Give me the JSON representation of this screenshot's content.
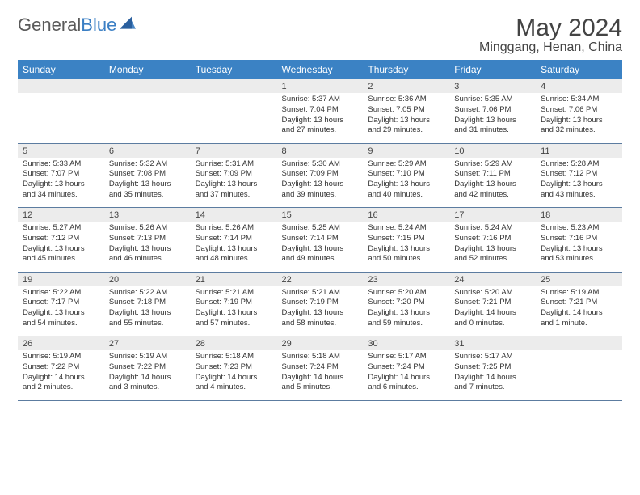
{
  "logo": {
    "word1": "General",
    "word2": "Blue"
  },
  "title": "May 2024",
  "location": "Minggang, Henan, China",
  "colors": {
    "header_bg": "#3b82c4",
    "header_text": "#ffffff",
    "daynum_bg": "#ececec",
    "border": "#5c7ca0",
    "text": "#333333",
    "title_text": "#444444",
    "logo_gray": "#5a5a5a",
    "logo_blue": "#3b7fc4"
  },
  "fonts": {
    "title_pt": 30,
    "location_pt": 16,
    "dayhead_pt": 12,
    "daynum_pt": 11,
    "cell_pt": 9.5
  },
  "day_names": [
    "Sunday",
    "Monday",
    "Tuesday",
    "Wednesday",
    "Thursday",
    "Friday",
    "Saturday"
  ],
  "weeks": [
    [
      {
        "num": "",
        "lines": []
      },
      {
        "num": "",
        "lines": []
      },
      {
        "num": "",
        "lines": []
      },
      {
        "num": "1",
        "lines": [
          "Sunrise: 5:37 AM",
          "Sunset: 7:04 PM",
          "Daylight: 13 hours",
          "and 27 minutes."
        ]
      },
      {
        "num": "2",
        "lines": [
          "Sunrise: 5:36 AM",
          "Sunset: 7:05 PM",
          "Daylight: 13 hours",
          "and 29 minutes."
        ]
      },
      {
        "num": "3",
        "lines": [
          "Sunrise: 5:35 AM",
          "Sunset: 7:06 PM",
          "Daylight: 13 hours",
          "and 31 minutes."
        ]
      },
      {
        "num": "4",
        "lines": [
          "Sunrise: 5:34 AM",
          "Sunset: 7:06 PM",
          "Daylight: 13 hours",
          "and 32 minutes."
        ]
      }
    ],
    [
      {
        "num": "5",
        "lines": [
          "Sunrise: 5:33 AM",
          "Sunset: 7:07 PM",
          "Daylight: 13 hours",
          "and 34 minutes."
        ]
      },
      {
        "num": "6",
        "lines": [
          "Sunrise: 5:32 AM",
          "Sunset: 7:08 PM",
          "Daylight: 13 hours",
          "and 35 minutes."
        ]
      },
      {
        "num": "7",
        "lines": [
          "Sunrise: 5:31 AM",
          "Sunset: 7:09 PM",
          "Daylight: 13 hours",
          "and 37 minutes."
        ]
      },
      {
        "num": "8",
        "lines": [
          "Sunrise: 5:30 AM",
          "Sunset: 7:09 PM",
          "Daylight: 13 hours",
          "and 39 minutes."
        ]
      },
      {
        "num": "9",
        "lines": [
          "Sunrise: 5:29 AM",
          "Sunset: 7:10 PM",
          "Daylight: 13 hours",
          "and 40 minutes."
        ]
      },
      {
        "num": "10",
        "lines": [
          "Sunrise: 5:29 AM",
          "Sunset: 7:11 PM",
          "Daylight: 13 hours",
          "and 42 minutes."
        ]
      },
      {
        "num": "11",
        "lines": [
          "Sunrise: 5:28 AM",
          "Sunset: 7:12 PM",
          "Daylight: 13 hours",
          "and 43 minutes."
        ]
      }
    ],
    [
      {
        "num": "12",
        "lines": [
          "Sunrise: 5:27 AM",
          "Sunset: 7:12 PM",
          "Daylight: 13 hours",
          "and 45 minutes."
        ]
      },
      {
        "num": "13",
        "lines": [
          "Sunrise: 5:26 AM",
          "Sunset: 7:13 PM",
          "Daylight: 13 hours",
          "and 46 minutes."
        ]
      },
      {
        "num": "14",
        "lines": [
          "Sunrise: 5:26 AM",
          "Sunset: 7:14 PM",
          "Daylight: 13 hours",
          "and 48 minutes."
        ]
      },
      {
        "num": "15",
        "lines": [
          "Sunrise: 5:25 AM",
          "Sunset: 7:14 PM",
          "Daylight: 13 hours",
          "and 49 minutes."
        ]
      },
      {
        "num": "16",
        "lines": [
          "Sunrise: 5:24 AM",
          "Sunset: 7:15 PM",
          "Daylight: 13 hours",
          "and 50 minutes."
        ]
      },
      {
        "num": "17",
        "lines": [
          "Sunrise: 5:24 AM",
          "Sunset: 7:16 PM",
          "Daylight: 13 hours",
          "and 52 minutes."
        ]
      },
      {
        "num": "18",
        "lines": [
          "Sunrise: 5:23 AM",
          "Sunset: 7:16 PM",
          "Daylight: 13 hours",
          "and 53 minutes."
        ]
      }
    ],
    [
      {
        "num": "19",
        "lines": [
          "Sunrise: 5:22 AM",
          "Sunset: 7:17 PM",
          "Daylight: 13 hours",
          "and 54 minutes."
        ]
      },
      {
        "num": "20",
        "lines": [
          "Sunrise: 5:22 AM",
          "Sunset: 7:18 PM",
          "Daylight: 13 hours",
          "and 55 minutes."
        ]
      },
      {
        "num": "21",
        "lines": [
          "Sunrise: 5:21 AM",
          "Sunset: 7:19 PM",
          "Daylight: 13 hours",
          "and 57 minutes."
        ]
      },
      {
        "num": "22",
        "lines": [
          "Sunrise: 5:21 AM",
          "Sunset: 7:19 PM",
          "Daylight: 13 hours",
          "and 58 minutes."
        ]
      },
      {
        "num": "23",
        "lines": [
          "Sunrise: 5:20 AM",
          "Sunset: 7:20 PM",
          "Daylight: 13 hours",
          "and 59 minutes."
        ]
      },
      {
        "num": "24",
        "lines": [
          "Sunrise: 5:20 AM",
          "Sunset: 7:21 PM",
          "Daylight: 14 hours",
          "and 0 minutes."
        ]
      },
      {
        "num": "25",
        "lines": [
          "Sunrise: 5:19 AM",
          "Sunset: 7:21 PM",
          "Daylight: 14 hours",
          "and 1 minute."
        ]
      }
    ],
    [
      {
        "num": "26",
        "lines": [
          "Sunrise: 5:19 AM",
          "Sunset: 7:22 PM",
          "Daylight: 14 hours",
          "and 2 minutes."
        ]
      },
      {
        "num": "27",
        "lines": [
          "Sunrise: 5:19 AM",
          "Sunset: 7:22 PM",
          "Daylight: 14 hours",
          "and 3 minutes."
        ]
      },
      {
        "num": "28",
        "lines": [
          "Sunrise: 5:18 AM",
          "Sunset: 7:23 PM",
          "Daylight: 14 hours",
          "and 4 minutes."
        ]
      },
      {
        "num": "29",
        "lines": [
          "Sunrise: 5:18 AM",
          "Sunset: 7:24 PM",
          "Daylight: 14 hours",
          "and 5 minutes."
        ]
      },
      {
        "num": "30",
        "lines": [
          "Sunrise: 5:17 AM",
          "Sunset: 7:24 PM",
          "Daylight: 14 hours",
          "and 6 minutes."
        ]
      },
      {
        "num": "31",
        "lines": [
          "Sunrise: 5:17 AM",
          "Sunset: 7:25 PM",
          "Daylight: 14 hours",
          "and 7 minutes."
        ]
      },
      {
        "num": "",
        "lines": []
      }
    ]
  ]
}
